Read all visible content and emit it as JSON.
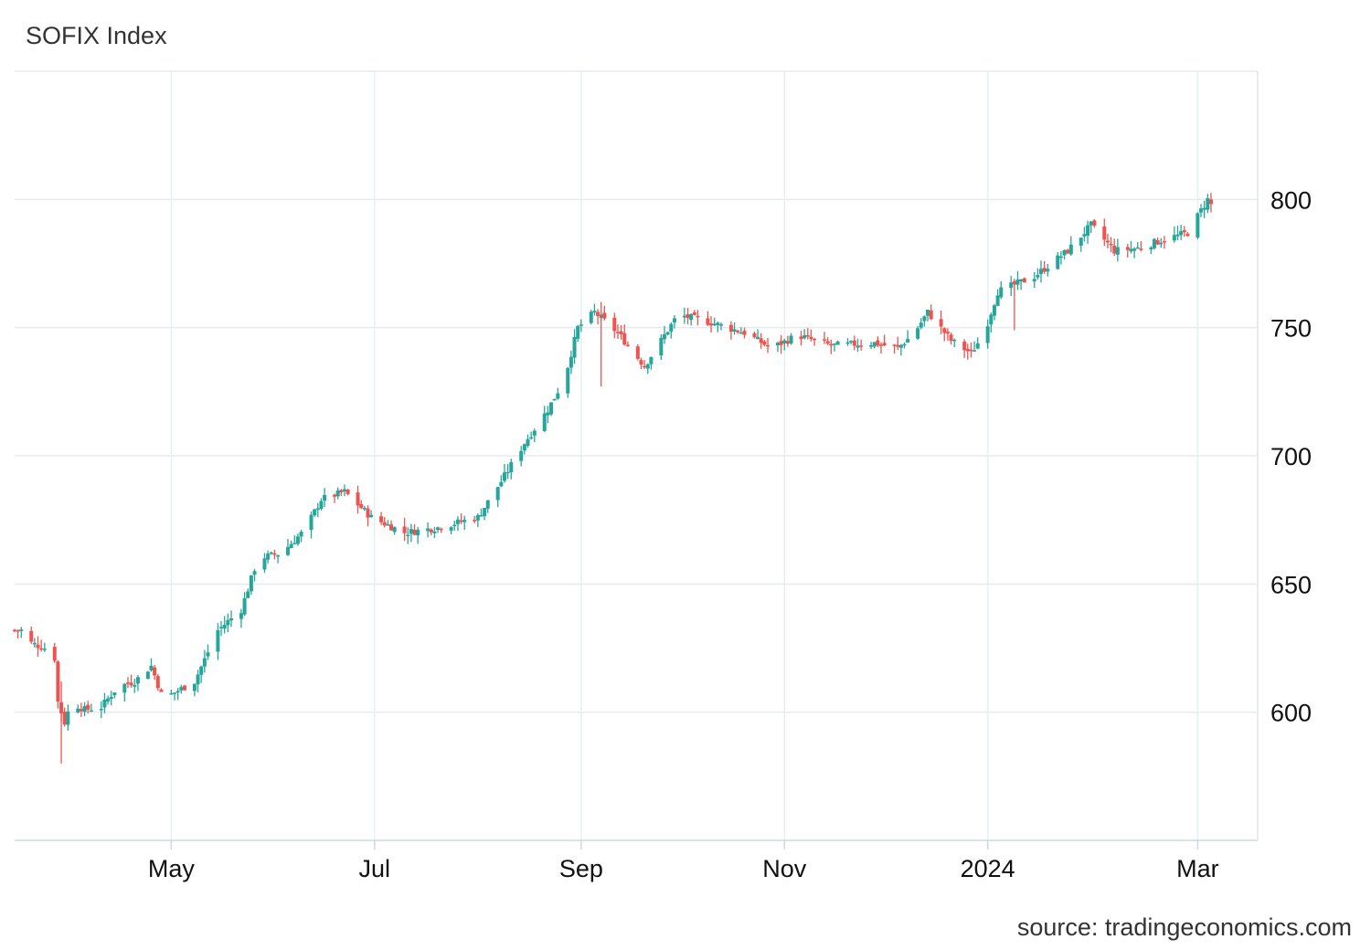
{
  "header": {
    "title": "SOFIX Index"
  },
  "footer": {
    "source": "source: tradingeconomics.com"
  },
  "colors": {
    "up": "#26a69a",
    "down": "#ef5350",
    "grid": "#e6ebee",
    "xgrid": "#e6f0f4"
  },
  "chart_data": {
    "type": "candlestick",
    "title": "SOFIX Index",
    "xlabel": "",
    "ylabel": "",
    "ylim": [
      550,
      850
    ],
    "yticks": [
      600,
      650,
      700,
      750,
      800
    ],
    "xlim": [
      "2023-03-15",
      "2024-03-22"
    ],
    "xticks": [
      {
        "date": "2023-05-01",
        "label": "May"
      },
      {
        "date": "2023-07-01",
        "label": "Jul"
      },
      {
        "date": "2023-09-01",
        "label": "Sep"
      },
      {
        "date": "2023-11-01",
        "label": "Nov"
      },
      {
        "date": "2024-01-01",
        "label": "2024"
      },
      {
        "date": "2024-03-04",
        "label": "Mar"
      }
    ],
    "grid": true,
    "axis_side": "right",
    "approx_close_anchors": [
      [
        "2023-03-15",
        632
      ],
      [
        "2023-03-18",
        632
      ],
      [
        "2023-03-20",
        627
      ],
      [
        "2023-03-24",
        625
      ],
      [
        "2023-03-27",
        621
      ],
      [
        "2023-03-28",
        604
      ],
      [
        "2023-03-30",
        596
      ],
      [
        "2023-04-01",
        604
      ],
      [
        "2023-04-05",
        601
      ],
      [
        "2023-04-10",
        602
      ],
      [
        "2023-04-15",
        610
      ],
      [
        "2023-04-20",
        612
      ],
      [
        "2023-04-25",
        618
      ],
      [
        "2023-04-28",
        607
      ],
      [
        "2023-05-01",
        607
      ],
      [
        "2023-05-08",
        612
      ],
      [
        "2023-05-15",
        632
      ],
      [
        "2023-05-22",
        640
      ],
      [
        "2023-05-27",
        660
      ],
      [
        "2023-06-03",
        662
      ],
      [
        "2023-06-10",
        671
      ],
      [
        "2023-06-15",
        683
      ],
      [
        "2023-06-22",
        686
      ],
      [
        "2023-06-30",
        676
      ],
      [
        "2023-07-10",
        670
      ],
      [
        "2023-07-20",
        672
      ],
      [
        "2023-08-01",
        676
      ],
      [
        "2023-08-08",
        690
      ],
      [
        "2023-08-15",
        705
      ],
      [
        "2023-08-22",
        718
      ],
      [
        "2023-08-27",
        730
      ],
      [
        "2023-08-31",
        750
      ],
      [
        "2023-09-05",
        756
      ],
      [
        "2023-09-12",
        748
      ],
      [
        "2023-09-20",
        735
      ],
      [
        "2023-09-30",
        755
      ],
      [
        "2023-10-10",
        752
      ],
      [
        "2023-10-20",
        748
      ],
      [
        "2023-10-28",
        742
      ],
      [
        "2023-11-05",
        747
      ],
      [
        "2023-11-15",
        743
      ],
      [
        "2023-11-28",
        744
      ],
      [
        "2023-12-05",
        742
      ],
      [
        "2023-12-10",
        748
      ],
      [
        "2023-12-14",
        756
      ],
      [
        "2023-12-21",
        745
      ],
      [
        "2023-12-27",
        740
      ],
      [
        "2023-12-31",
        748
      ],
      [
        "2024-01-04",
        764
      ],
      [
        "2024-01-15",
        770
      ],
      [
        "2024-01-25",
        780
      ],
      [
        "2024-02-01",
        790
      ],
      [
        "2024-02-08",
        780
      ],
      [
        "2024-02-15",
        781
      ],
      [
        "2024-02-22",
        784
      ],
      [
        "2024-03-01",
        787
      ],
      [
        "2024-03-07",
        800
      ],
      [
        "2024-03-09",
        796
      ]
    ]
  }
}
